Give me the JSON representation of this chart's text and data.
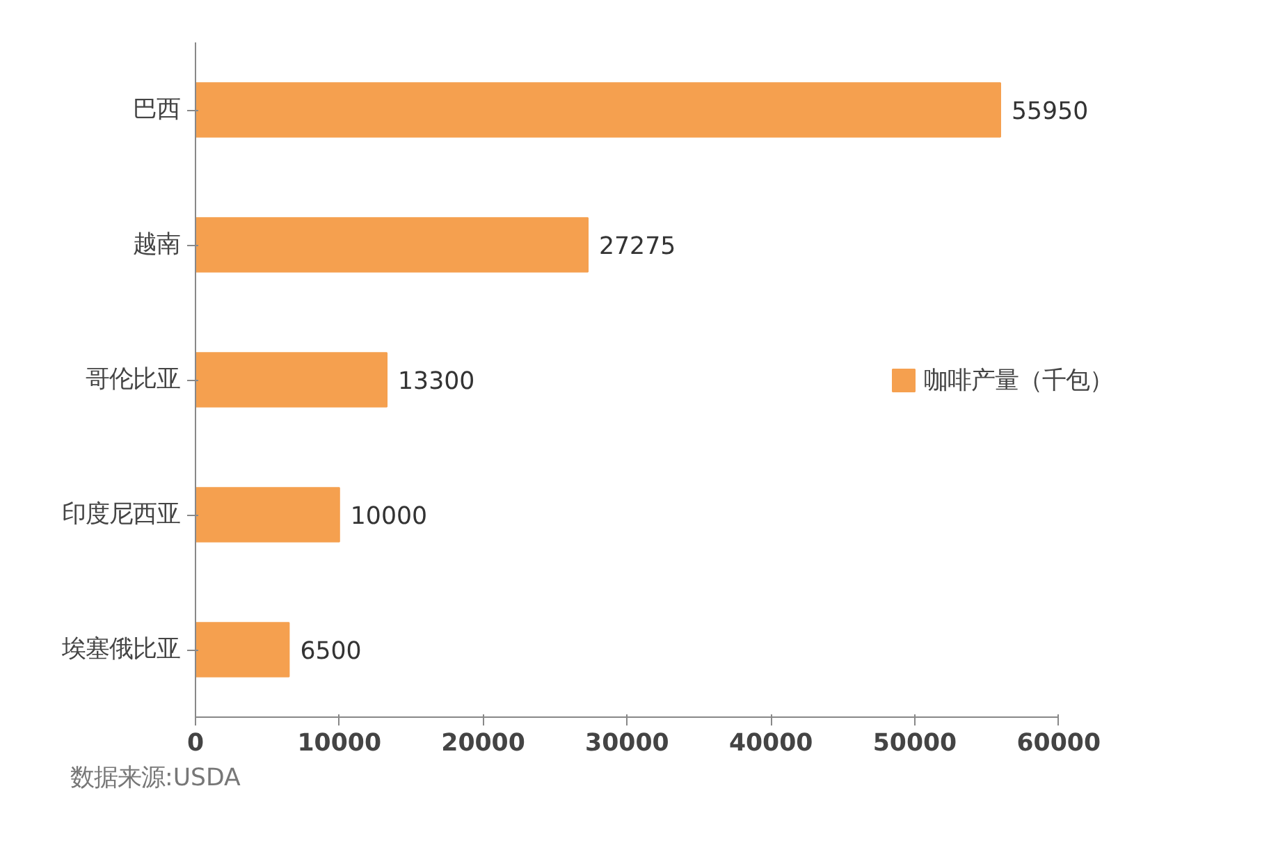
{
  "chart_data": {
    "type": "bar",
    "orientation": "horizontal",
    "categories": [
      "巴西",
      "越南",
      "哥伦比亚",
      "印度尼西亚",
      "埃塞俄比亚"
    ],
    "series": [
      {
        "name": "咖啡产量（千包）",
        "color": "#f5a04f",
        "values": [
          55950,
          27275,
          13300,
          10000,
          6500
        ]
      }
    ],
    "xlim": [
      0,
      60000
    ],
    "xticks": [
      0,
      10000,
      20000,
      30000,
      40000,
      50000,
      60000
    ],
    "data_labels": true,
    "grid": false,
    "legend": "right",
    "annotations": [
      "数据来源:USDA"
    ]
  }
}
